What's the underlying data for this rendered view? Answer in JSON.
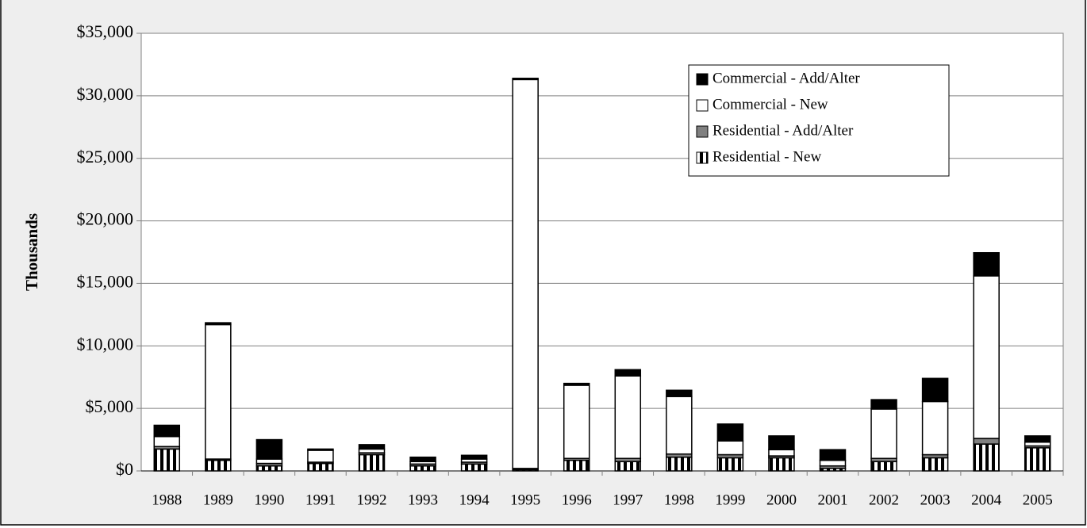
{
  "chart_data": {
    "type": "stacked-bar",
    "y_label": "Thousands",
    "categories": [
      "1988",
      "1989",
      "1990",
      "1991",
      "1992",
      "1993",
      "1994",
      "1995",
      "1996",
      "1997",
      "1998",
      "1999",
      "2000",
      "2001",
      "2002",
      "2003",
      "2004",
      "2005"
    ],
    "series": [
      {
        "name": "Residential - New",
        "color": "#ffffff",
        "pattern": "vertical-stripes",
        "values": [
          1750,
          850,
          400,
          600,
          1300,
          400,
          550,
          100,
          850,
          750,
          1100,
          1050,
          1050,
          200,
          750,
          1050,
          2150,
          1850
        ]
      },
      {
        "name": "Residential - Add/Alter",
        "color": "#808080",
        "values": [
          200,
          100,
          200,
          100,
          150,
          150,
          150,
          100,
          150,
          250,
          250,
          250,
          150,
          200,
          250,
          250,
          450,
          150
        ]
      },
      {
        "name": "Commercial - New",
        "color": "#ffffff",
        "values": [
          800,
          10750,
          350,
          950,
          300,
          200,
          250,
          31100,
          5850,
          6600,
          4600,
          1100,
          500,
          450,
          3950,
          4250,
          13000,
          300
        ]
      },
      {
        "name": "Commercial - Add/Alter",
        "color": "#000000",
        "values": [
          900,
          150,
          1550,
          100,
          350,
          350,
          300,
          100,
          150,
          500,
          500,
          1350,
          1100,
          850,
          750,
          1850,
          1850,
          500
        ]
      }
    ],
    "ylim": [
      0,
      35000
    ],
    "yticks": [
      {
        "value": 0,
        "label": "$0"
      },
      {
        "value": 5000,
        "label": "$5,000"
      },
      {
        "value": 10000,
        "label": "$10,000"
      },
      {
        "value": 15000,
        "label": "$15,000"
      },
      {
        "value": 20000,
        "label": "$20,000"
      },
      {
        "value": 25000,
        "label": "$25,000"
      },
      {
        "value": 30000,
        "label": "$30,000"
      },
      {
        "value": 35000,
        "label": "$35,000"
      }
    ],
    "grid": true,
    "legend": "upper right"
  }
}
